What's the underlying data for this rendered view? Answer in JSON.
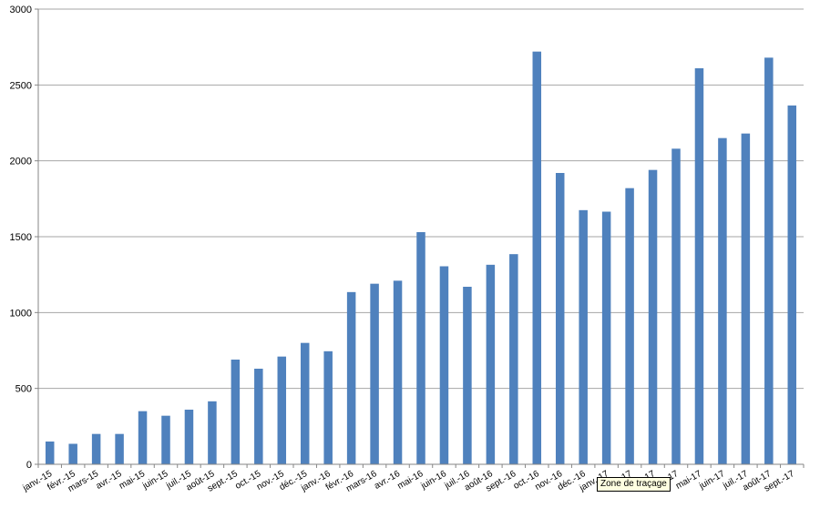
{
  "chart_data": {
    "type": "bar",
    "categories": [
      "janv.-15",
      "févr.-15",
      "mars-15",
      "avr.-15",
      "mai-15",
      "juin-15",
      "juil.-15",
      "août-15",
      "sept.-15",
      "oct.-15",
      "nov.-15",
      "déc.-15",
      "janv.-16",
      "févr.-16",
      "mars-16",
      "avr.-16",
      "mai-16",
      "juin-16",
      "juil.-16",
      "août-16",
      "sept.-16",
      "oct.-16",
      "nov.-16",
      "déc.-16",
      "janv.-17",
      "févr.-17",
      "mars-17",
      "avr.-17",
      "mai-17",
      "juin-17",
      "juil.-17",
      "août-17",
      "sept.-17"
    ],
    "values": [
      150,
      135,
      200,
      200,
      350,
      320,
      360,
      415,
      690,
      630,
      710,
      800,
      745,
      1135,
      1190,
      1210,
      1530,
      1305,
      1170,
      1315,
      1385,
      2720,
      1920,
      1675,
      1665,
      1820,
      1940,
      2080,
      2610,
      2150,
      2180,
      2680,
      2365
    ],
    "ylim": [
      0,
      3000
    ],
    "yticks": [
      0,
      500,
      1000,
      1500,
      2000,
      2500,
      3000
    ],
    "grid": true,
    "bar_color": "#4f81bd"
  },
  "tooltip": {
    "text": "Zone de traçage"
  },
  "colors": {
    "grid": "#a6a6a6",
    "axis": "#868686"
  }
}
